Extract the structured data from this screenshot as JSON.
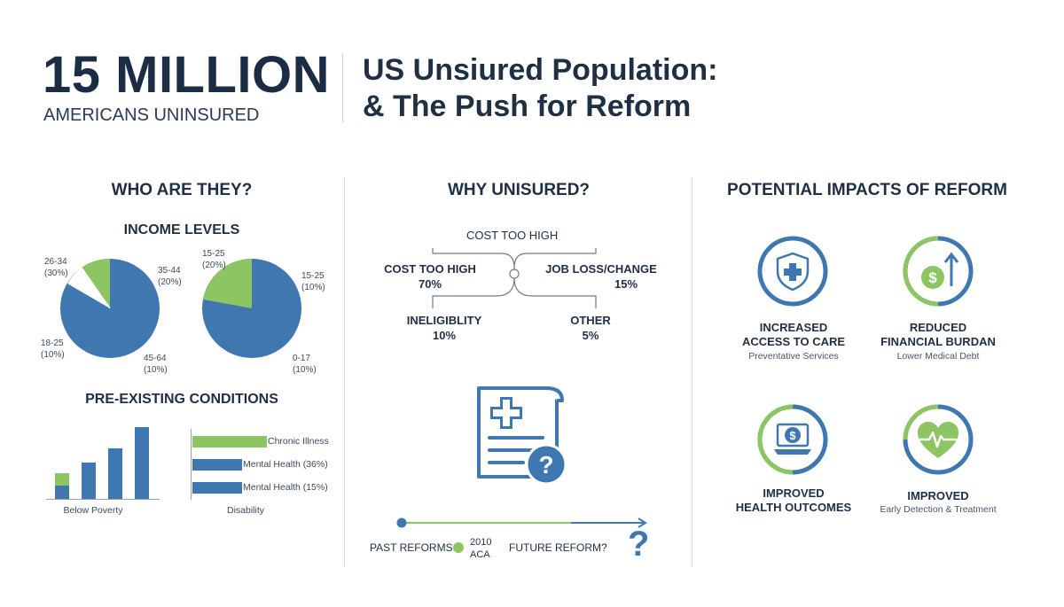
{
  "header": {
    "big_number": "15 MILLION",
    "big_caption": "AMERICANS UNINSURED",
    "title_line1": "US Unsiured Population:",
    "title_line2": "& The Push for Reform"
  },
  "who": {
    "title": "WHO ARE THEY?",
    "income_title": "INCOME LEVELS",
    "pie1": {
      "labels": [
        {
          "name": "26-34",
          "pct": "(30%)"
        },
        {
          "name": "35-44",
          "pct": "(20%)"
        },
        {
          "name": "18-25",
          "pct": "(10%)"
        },
        {
          "name": "45-64",
          "pct": "(10%)"
        }
      ]
    },
    "pie2": {
      "labels": [
        {
          "name": "15-25",
          "pct": "(20%)"
        },
        {
          "name": "15-25",
          "pct": "(10%)"
        },
        {
          "name": "0-17",
          "pct": "(10%)"
        }
      ]
    },
    "conditions_title": "PRE-EXISTING CONDITIONS",
    "vbar_caption": "Below Poverty",
    "hbar_caption": "Disability",
    "hbar_labels": [
      "Chronic Illness",
      "Mental Health (36%)",
      "Mental Health (15%)"
    ]
  },
  "why": {
    "title": "WHY UNISURED?",
    "top_label": "COST TOO HIGH",
    "reasons": [
      {
        "name": "COST TOO HIGH",
        "pct": "70%"
      },
      {
        "name": "JOB LOSS/CHANGE",
        "pct": "15%"
      },
      {
        "name": "INELIGIBLITY",
        "pct": "10%"
      },
      {
        "name": "OTHER",
        "pct": "5%"
      }
    ],
    "timeline": {
      "past": "PAST REFORMS",
      "year": "2010",
      "act": "ACA",
      "future": "FUTURE REFORM?",
      "question": "?"
    }
  },
  "impacts": {
    "title": "POTENTIAL IMPACTS OF REFORM",
    "items": [
      {
        "title1": "INCREASED",
        "title2": "ACCESS TO CARE",
        "sub": "Preventative Services",
        "icon": "shield-cross-icon"
      },
      {
        "title1": "REDUCED",
        "title2": "FINANCIAL BURDAN",
        "sub": "Lower Medical Debt",
        "icon": "dollar-arrow-icon"
      },
      {
        "title1": "IMPROVED",
        "title2": "HEALTH OUTCOMES",
        "sub": "",
        "icon": "dollar-laptop-icon"
      },
      {
        "title1": "IMPROVED",
        "title2": "",
        "sub": "Early Detection & Treatment",
        "icon": "heart-pulse-icon"
      }
    ]
  },
  "colors": {
    "blue": "#3f77b0",
    "green": "#8dc563",
    "navy": "#1f2f44"
  }
}
